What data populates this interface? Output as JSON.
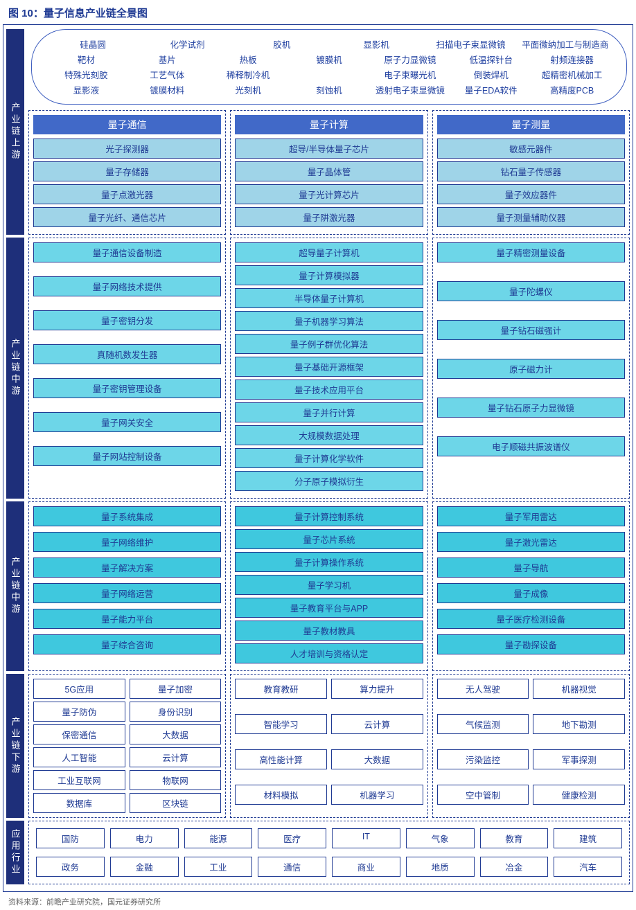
{
  "title": "图 10：量子信息产业链全景图",
  "source": "资料来源：前瞻产业研究院，国元证券研究所",
  "stages": {
    "s1": "产业链上游",
    "s2": "产业链中游",
    "s3": "产业链中游",
    "s4": "产业链下游",
    "s5": "应用行业"
  },
  "colors": {
    "stage_bg": "#1e2f7a",
    "header_bg": "#4169c8",
    "border": "#1f3a93",
    "c_blue": "#9fd4e8",
    "c_cyan": "#6dd6e8",
    "c_teal": "#3fc8de",
    "c_white": "#ffffff"
  },
  "cloud": {
    "r1": [
      "硅晶圆",
      "化学试剂",
      "胶机",
      "显影机",
      "扫描电子束显微镜",
      "平面微纳加工与制造商"
    ],
    "r2": [
      "靶材",
      "基片",
      "热板",
      "镀膜机",
      "原子力显微镜",
      "低温探针台",
      "射频连接器"
    ],
    "r3": [
      "特殊光刻胶",
      "工艺气体",
      "稀释制冷机",
      "",
      "电子束曝光机",
      "倒装焊机",
      "超精密机械加工"
    ],
    "r4": [
      "显影液",
      "镀膜材料",
      "光刻机",
      "刻蚀机",
      "透射电子束显微镜",
      "量子EDA软件",
      "高精度PCB"
    ]
  },
  "headers": {
    "h1": "量子通信",
    "h2": "量子计算",
    "h3": "量子测量"
  },
  "sec1": {
    "c1": [
      "光子探测器",
      "量子存储器",
      "量子点激光器",
      "量子光纤、通信芯片"
    ],
    "c2": [
      "超导/半导体量子芯片",
      "量子晶体管",
      "量子光计算芯片",
      "量子阱激光器"
    ],
    "c3": [
      "敏感元器件",
      "钻石量子传感器",
      "量子效应器件",
      "量子测量辅助仪器"
    ]
  },
  "sec2": {
    "c1": [
      "量子通信设备制造",
      "量子网络技术提供",
      "量子密钥分发",
      "真随机数发生器",
      "量子密钥管理设备",
      "量子网关安全",
      "量子网站控制设备"
    ],
    "c2": [
      "超导量子计算机",
      "量子计算模拟器",
      "半导体量子计算机",
      "量子机器学习算法",
      "量子例子群优化算法",
      "量子基础开源框架",
      "量子技术应用平台",
      "量子并行计算",
      "大规模数据处理",
      "量子计算化学软件",
      "分子原子模拟衍生"
    ],
    "c3": [
      "量子精密测量设备",
      "量子陀螺仪",
      "量子钻石磁强计",
      "原子磁力计",
      "量子钻石原子力显微镜",
      "电子顺磁共振波谱仪"
    ]
  },
  "sec3": {
    "c1": [
      "量子系统集成",
      "量子网络维护",
      "量子解决方案",
      "量子网络运营",
      "量子能力平台",
      "量子综合咨询"
    ],
    "c2": [
      "量子计算控制系统",
      "量子芯片系统",
      "量子计算操作系统",
      "量子学习机",
      "量子教育平台与APP",
      "量子教材教具",
      "人才培训与资格认定"
    ],
    "c3": [
      "量子军用雷达",
      "量子激光雷达",
      "量子导航",
      "量子成像",
      "量子医疗检测设备",
      "量子勘探设备"
    ]
  },
  "sec4": {
    "c1": [
      [
        "5G应用",
        "量子加密"
      ],
      [
        "量子防伪",
        "身份识别"
      ],
      [
        "保密通信",
        "大数据"
      ],
      [
        "人工智能",
        "云计算"
      ],
      [
        "工业互联网",
        "物联网"
      ],
      [
        "数据库",
        "区块链"
      ]
    ],
    "c2": [
      [
        "教育教研",
        "算力提升"
      ],
      [
        "智能学习",
        "云计算"
      ],
      [
        "高性能计算",
        "大数据"
      ],
      [
        "材料模拟",
        "机器学习"
      ]
    ],
    "c3": [
      [
        "无人驾驶",
        "机器视觉"
      ],
      [
        "气候监测",
        "地下勘测"
      ],
      [
        "污染监控",
        "军事探测"
      ],
      [
        "空中管制",
        "健康检测"
      ]
    ]
  },
  "apps": {
    "r1": [
      "国防",
      "电力",
      "能源",
      "医疗",
      "IT",
      "气象",
      "教育",
      "建筑"
    ],
    "r2": [
      "政务",
      "金融",
      "工业",
      "通信",
      "商业",
      "地质",
      "冶金",
      "汽车"
    ]
  }
}
